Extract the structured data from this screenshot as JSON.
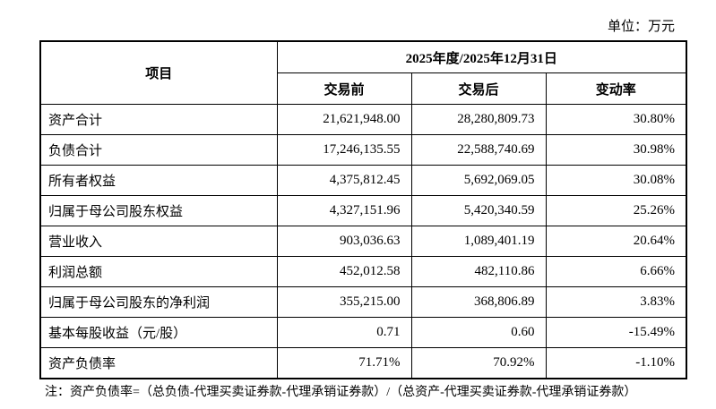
{
  "unit": "单位：万元",
  "table": {
    "header": {
      "item": "项目",
      "period": "2025年度/2025年12月31日",
      "columns": [
        "交易前",
        "交易后",
        "变动率"
      ]
    },
    "rows": [
      [
        "资产合计",
        "21,621,948.00",
        "28,280,809.73",
        "30.80%"
      ],
      [
        "负债合计",
        "17,246,135.55",
        "22,588,740.69",
        "30.98%"
      ],
      [
        "所有者权益",
        "4,375,812.45",
        "5,692,069.05",
        "30.08%"
      ],
      [
        "归属于母公司股东权益",
        "4,327,151.96",
        "5,420,340.59",
        "25.26%"
      ],
      [
        "营业收入",
        "903,036.63",
        "1,089,401.19",
        "20.64%"
      ],
      [
        "利润总额",
        "452,012.58",
        "482,110.86",
        "6.66%"
      ],
      [
        "归属于母公司股东的净利润",
        "355,215.00",
        "368,806.89",
        "3.83%"
      ],
      [
        "基本每股收益（元/股）",
        "0.71",
        "0.60",
        "-15.49%"
      ],
      [
        "资产负债率",
        "71.71%",
        "70.92%",
        "-1.10%"
      ]
    ]
  },
  "note": "注：资产负债率=（总负债-代理买卖证券款-代理承销证券款）/（总资产-代理买卖证券款-代理承销证券款）"
}
